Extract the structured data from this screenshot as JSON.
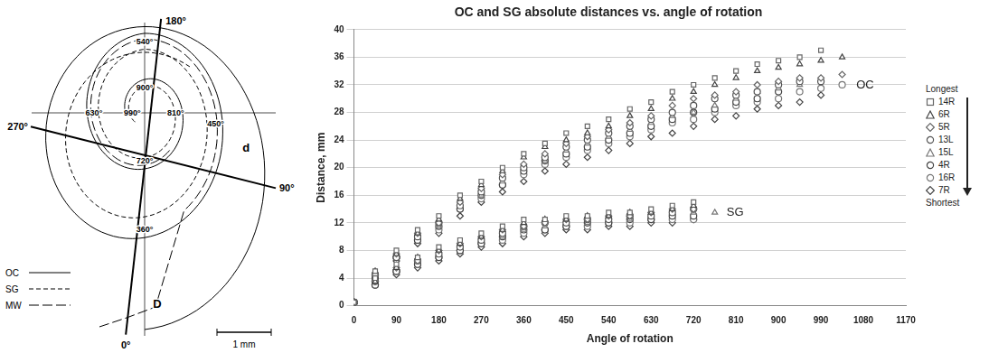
{
  "diagram": {
    "axis_labels": [
      "0°",
      "90°",
      "180°",
      "270°"
    ],
    "turn_labels": [
      "360°",
      "450°",
      "540°",
      "630°",
      "720°",
      "810°",
      "900°",
      "990°"
    ],
    "distance_labels": [
      "d",
      "D"
    ],
    "legend": [
      {
        "name": "OC",
        "line_style": "solid"
      },
      {
        "name": "SG",
        "line_style": "dashed"
      },
      {
        "name": "MW",
        "line_style": "longdash"
      }
    ],
    "scale_bar": "1 mm"
  },
  "chart_data": {
    "type": "scatter",
    "title": "OC and SG absolute distances vs. angle of rotation",
    "x_label": "Angle of rotation",
    "y_label": "Distance, mm",
    "xlim": [
      0,
      1170
    ],
    "xticks": [
      0,
      90,
      180,
      270,
      360,
      450,
      540,
      630,
      720,
      810,
      900,
      990,
      1080,
      1170
    ],
    "ylim": [
      0,
      40
    ],
    "yticks": [
      0,
      4,
      8,
      12,
      16,
      20,
      24,
      28,
      32,
      36,
      40
    ],
    "grid": "y",
    "legend": "right",
    "legend_order": [
      "Longest",
      "Shortest"
    ],
    "annotations": [
      {
        "text": "OC",
        "x": 1065,
        "y": 32
      },
      {
        "text": "SG",
        "x": 790,
        "y": 13.5
      }
    ],
    "x": [
      0,
      45,
      90,
      135,
      180,
      225,
      270,
      315,
      360,
      405,
      450,
      495,
      540,
      585,
      630,
      675,
      720,
      765,
      810,
      855,
      900,
      945,
      990,
      1035
    ],
    "series": [
      {
        "name": "14R",
        "marker": "square",
        "color": "#666666",
        "values": [
          0.5,
          5,
          8,
          11,
          13,
          16,
          18,
          20,
          22,
          23.5,
          25,
          26,
          27,
          28.5,
          29.5,
          31,
          32,
          33,
          34,
          35,
          35.5,
          36,
          37,
          null
        ],
        "sg_values": [
          0.5,
          4,
          6,
          7,
          8.5,
          9.5,
          10.5,
          11.5,
          12.5,
          12.5,
          13,
          13,
          13.5,
          13.5,
          14,
          14.5,
          15,
          null,
          null,
          null,
          null,
          null,
          null,
          null
        ]
      },
      {
        "name": "6R",
        "marker": "triangle",
        "color": "#444444",
        "values": [
          0.5,
          5,
          7.5,
          10.5,
          12.5,
          15.5,
          17.5,
          19.5,
          21.5,
          23,
          24,
          25,
          26,
          27.5,
          28.5,
          30,
          31,
          32,
          33,
          34,
          34.5,
          35,
          35.5,
          36
        ],
        "sg_values": [
          0.5,
          3.5,
          5.5,
          7,
          8,
          9,
          10,
          11,
          12,
          12.5,
          12.5,
          13,
          13,
          13.5,
          13.5,
          14,
          14.5,
          null,
          null,
          null,
          null,
          null,
          null,
          null
        ]
      },
      {
        "name": "5R",
        "marker": "diamond",
        "color": "#666666",
        "values": [
          0.5,
          4.5,
          7.5,
          10.5,
          12,
          15,
          17,
          19,
          20.5,
          22,
          23.5,
          24.5,
          25.5,
          26.5,
          27.5,
          29,
          30,
          30.5,
          31,
          32,
          32.5,
          33,
          33,
          33.5
        ],
        "sg_values": [
          0.5,
          3.5,
          5.5,
          6.5,
          8,
          9,
          10,
          11,
          11.5,
          12,
          12.5,
          12.5,
          13,
          13,
          13.5,
          14,
          14,
          null,
          null,
          null,
          null,
          null,
          null,
          null
        ]
      },
      {
        "name": "13L",
        "marker": "circle",
        "color": "#555555",
        "values": [
          0.5,
          4.5,
          7,
          10,
          12,
          14.5,
          16.5,
          18.5,
          20,
          21.5,
          23,
          24,
          25,
          26,
          27,
          28,
          29,
          30,
          30.5,
          31,
          32,
          32.5,
          32.5,
          null
        ],
        "sg_values": [
          0.5,
          3.5,
          5,
          6.5,
          7.5,
          8.5,
          9.5,
          10.5,
          11.5,
          12,
          12,
          12.5,
          12.5,
          13,
          13,
          13.5,
          14,
          null,
          null,
          null,
          null,
          null,
          null,
          null
        ]
      },
      {
        "name": "15L",
        "marker": "triangle",
        "color": "#777777",
        "values": [
          0.5,
          4.5,
          7,
          10,
          11.5,
          14.5,
          16,
          18,
          20,
          21,
          22.5,
          23.5,
          24.5,
          25.5,
          26.5,
          27.5,
          28,
          29,
          30,
          31,
          31.5,
          32,
          null,
          null
        ],
        "sg_values": [
          0.5,
          3.5,
          5,
          6.5,
          7.5,
          8.5,
          9.5,
          10,
          11,
          11.5,
          12,
          12,
          12.5,
          12.5,
          13,
          13.5,
          13.5,
          13.5,
          null,
          null,
          null,
          null,
          null,
          null
        ]
      },
      {
        "name": "4R",
        "marker": "circle",
        "color": "#444444",
        "values": [
          0.5,
          4,
          7,
          9.5,
          11.5,
          14,
          16,
          17.5,
          19.5,
          21,
          22,
          23,
          24,
          25,
          26,
          27,
          28,
          28.5,
          29.5,
          30,
          31,
          null,
          null,
          null
        ],
        "sg_values": [
          0.5,
          3,
          5,
          6,
          7,
          8,
          9,
          10,
          11,
          11,
          11.5,
          12,
          12,
          12.5,
          12.5,
          13,
          13,
          null,
          null,
          null,
          null,
          null,
          null,
          null
        ]
      },
      {
        "name": "16R",
        "marker": "circle",
        "color": "#777777",
        "values": [
          0.5,
          4,
          7,
          9.5,
          11,
          14,
          15.5,
          17.5,
          19,
          20.5,
          21.5,
          22.5,
          23.5,
          24.5,
          25.5,
          26.5,
          27,
          28,
          29,
          29.5,
          30,
          31,
          31.5,
          32
        ],
        "sg_values": [
          0.5,
          3,
          5,
          6,
          7,
          8,
          9,
          9.5,
          10.5,
          11,
          11.5,
          11.5,
          12,
          12,
          12.5,
          12.5,
          12.5,
          null,
          null,
          null,
          null,
          null,
          null,
          null
        ]
      },
      {
        "name": "7R",
        "marker": "diamond",
        "color": "#444444",
        "values": [
          0.5,
          3.5,
          6.5,
          9,
          10.5,
          13,
          15,
          16.5,
          18,
          19.5,
          20.5,
          21.5,
          22.5,
          23.5,
          24.5,
          25,
          26,
          27,
          27.5,
          28.5,
          29,
          29.5,
          30.5,
          null
        ],
        "sg_values": [
          0.5,
          3,
          4.5,
          5.5,
          6.5,
          7.5,
          8.5,
          9,
          10,
          10.5,
          11,
          11,
          11.5,
          11.5,
          12,
          12,
          12.5,
          null,
          null,
          null,
          null,
          null,
          null,
          null
        ]
      }
    ]
  }
}
